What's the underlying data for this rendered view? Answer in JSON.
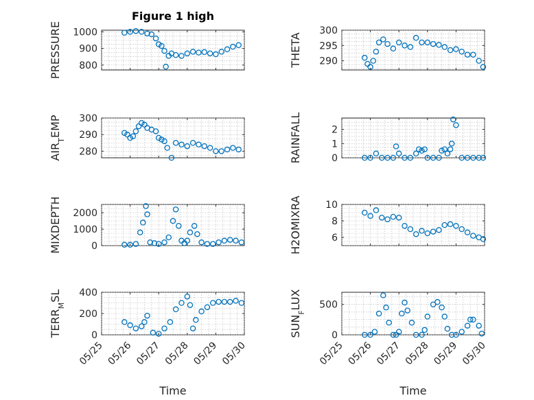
{
  "figure": {
    "title": "Figure 1 high",
    "marker_color": "#0072BD"
  },
  "chart_data": [
    {
      "type": "scatter",
      "title": "Figure 1 high",
      "ylabel": "PRESSURE",
      "xlabel": "",
      "xlim": [
        "05/25",
        "05/30"
      ],
      "ylim": [
        770,
        1010
      ],
      "yticks": [
        800,
        900,
        1000
      ],
      "xticks": [
        "05/25",
        "05/26",
        "05/27",
        "05/28",
        "05/29",
        "05/30"
      ],
      "show_xticklabels": false,
      "grid": true,
      "series": [
        {
          "x": [
            25.8,
            26.0,
            26.2,
            26.4,
            26.6,
            26.75,
            26.9,
            27.0,
            27.1,
            27.2,
            27.25,
            27.35,
            27.45,
            27.6,
            27.8,
            28.0,
            28.2,
            28.4,
            28.6,
            28.8,
            29.0,
            29.2,
            29.4,
            29.6,
            29.8
          ],
          "y": [
            995,
            1000,
            1005,
            1000,
            990,
            985,
            960,
            925,
            915,
            885,
            790,
            855,
            870,
            860,
            855,
            870,
            880,
            875,
            878,
            870,
            865,
            880,
            895,
            910,
            920
          ]
        }
      ]
    },
    {
      "type": "scatter",
      "ylabel": "THETA",
      "xlabel": "",
      "xlim": [
        "05/25",
        "05/30"
      ],
      "ylim": [
        287,
        300
      ],
      "yticks": [
        290,
        295,
        300
      ],
      "xticks": [
        "05/25",
        "05/26",
        "05/27",
        "05/28",
        "05/29",
        "05/30"
      ],
      "show_xticklabels": false,
      "grid": true,
      "series": [
        {
          "x": [
            25.8,
            25.9,
            26.0,
            26.1,
            26.2,
            26.3,
            26.45,
            26.6,
            26.8,
            27.0,
            27.2,
            27.4,
            27.6,
            27.8,
            28.0,
            28.2,
            28.4,
            28.6,
            28.8,
            29.0,
            29.2,
            29.4,
            29.6,
            29.8,
            29.95
          ],
          "y": [
            291,
            289,
            288,
            290,
            293,
            296,
            297,
            295.5,
            294,
            296,
            295,
            294.5,
            297.5,
            296,
            296,
            295.5,
            295.2,
            294.5,
            293.5,
            293.8,
            293,
            292,
            292,
            290,
            288
          ]
        }
      ]
    },
    {
      "type": "scatter",
      "ylabel": "AIR_TEMP",
      "xlabel": "",
      "xlim": [
        "05/25",
        "05/30"
      ],
      "ylim": [
        276,
        300
      ],
      "yticks": [
        280,
        290,
        300
      ],
      "xticks": [
        "05/25",
        "05/26",
        "05/27",
        "05/28",
        "05/29",
        "05/30"
      ],
      "show_xticklabels": false,
      "grid": true,
      "series": [
        {
          "x": [
            25.8,
            25.9,
            26.0,
            26.1,
            26.2,
            26.3,
            26.4,
            26.5,
            26.6,
            26.75,
            26.9,
            27.0,
            27.1,
            27.2,
            27.3,
            27.45,
            27.6,
            27.8,
            28.0,
            28.2,
            28.4,
            28.6,
            28.8,
            29.0,
            29.2,
            29.4,
            29.6,
            29.8
          ],
          "y": [
            291,
            290,
            288,
            289,
            292,
            295,
            297,
            296,
            294,
            293,
            292,
            288,
            287,
            286,
            282,
            276,
            285,
            284,
            283,
            285,
            284,
            283,
            282,
            280,
            280,
            281,
            282,
            281
          ]
        }
      ]
    },
    {
      "type": "scatter",
      "ylabel": "RAINFALL",
      "xlabel": "",
      "xlim": [
        "05/25",
        "05/30"
      ],
      "ylim": [
        0,
        2.8
      ],
      "yticks": [
        0,
        1,
        2
      ],
      "xticks": [
        "05/25",
        "05/26",
        "05/27",
        "05/28",
        "05/29",
        "05/30"
      ],
      "show_xticklabels": false,
      "grid": true,
      "series": [
        {
          "x": [
            25.8,
            26.0,
            26.2,
            26.4,
            26.6,
            26.8,
            26.9,
            27.0,
            27.2,
            27.4,
            27.6,
            27.7,
            27.8,
            27.9,
            28.0,
            28.2,
            28.4,
            28.5,
            28.6,
            28.7,
            28.8,
            28.85,
            28.9,
            29.0,
            29.2,
            29.4,
            29.6,
            29.8,
            29.95
          ],
          "y": [
            0,
            0,
            0.3,
            0,
            0,
            0,
            0.8,
            0.3,
            0,
            0,
            0.3,
            0.6,
            0.5,
            0.6,
            0,
            0,
            0,
            0.5,
            0.6,
            0.3,
            0.6,
            1.0,
            2.7,
            2.3,
            0,
            0,
            0,
            0,
            0
          ]
        }
      ]
    },
    {
      "type": "scatter",
      "ylabel": "MIXDEPTH",
      "xlabel": "",
      "xlim": [
        "05/25",
        "05/30"
      ],
      "ylim": [
        0,
        2500
      ],
      "yticks": [
        0,
        1000,
        2000
      ],
      "xticks": [
        "05/25",
        "05/26",
        "05/27",
        "05/28",
        "05/29",
        "05/30"
      ],
      "show_xticklabels": false,
      "grid": true,
      "series": [
        {
          "x": [
            25.8,
            26.0,
            26.2,
            26.35,
            26.45,
            26.55,
            26.6,
            26.7,
            26.85,
            27.0,
            27.2,
            27.35,
            27.5,
            27.6,
            27.7,
            27.8,
            27.9,
            28.0,
            28.1,
            28.25,
            28.35,
            28.5,
            28.7,
            28.9,
            29.1,
            29.3,
            29.5,
            29.7,
            29.9
          ],
          "y": [
            50,
            50,
            100,
            800,
            1400,
            2400,
            1900,
            200,
            150,
            100,
            200,
            500,
            1500,
            2200,
            1200,
            300,
            150,
            300,
            800,
            1200,
            700,
            200,
            100,
            100,
            200,
            300,
            350,
            300,
            200
          ]
        }
      ]
    },
    {
      "type": "scatter",
      "ylabel": "H2OMIXRA",
      "xlabel": "",
      "xlim": [
        "05/25",
        "05/30"
      ],
      "ylim": [
        5,
        10
      ],
      "yticks": [
        6,
        8,
        10
      ],
      "xticks": [
        "05/25",
        "05/26",
        "05/27",
        "05/28",
        "05/29",
        "05/30"
      ],
      "show_xticklabels": false,
      "grid": true,
      "series": [
        {
          "x": [
            25.8,
            26.0,
            26.2,
            26.4,
            26.6,
            26.8,
            27.0,
            27.2,
            27.4,
            27.6,
            27.8,
            28.0,
            28.2,
            28.4,
            28.6,
            28.8,
            29.0,
            29.2,
            29.4,
            29.6,
            29.8,
            29.95
          ],
          "y": [
            9.0,
            8.6,
            9.3,
            8.4,
            8.2,
            8.5,
            8.4,
            7.4,
            7.0,
            6.4,
            6.8,
            6.5,
            6.7,
            6.9,
            7.5,
            7.6,
            7.4,
            7.0,
            6.6,
            6.2,
            6.0,
            5.8
          ]
        }
      ]
    },
    {
      "type": "scatter",
      "ylabel": "TERR_MSL",
      "xlabel": "Time",
      "xlim": [
        "05/25",
        "05/30"
      ],
      "ylim": [
        0,
        400
      ],
      "yticks": [
        0,
        200,
        400
      ],
      "xticks": [
        "05/25",
        "05/26",
        "05/27",
        "05/28",
        "05/29",
        "05/30"
      ],
      "show_xticklabels": true,
      "grid": true,
      "series": [
        {
          "x": [
            25.8,
            26.0,
            26.2,
            26.4,
            26.5,
            26.6,
            26.8,
            27.0,
            27.2,
            27.4,
            27.6,
            27.8,
            28.0,
            28.1,
            28.2,
            28.3,
            28.5,
            28.7,
            28.9,
            29.1,
            29.3,
            29.5,
            29.7,
            29.9
          ],
          "y": [
            120,
            90,
            60,
            80,
            120,
            180,
            20,
            10,
            60,
            120,
            240,
            300,
            360,
            280,
            60,
            140,
            220,
            260,
            300,
            310,
            310,
            310,
            320,
            300
          ]
        }
      ]
    },
    {
      "type": "scatter",
      "ylabel": "SUN_FLUX",
      "xlabel": "Time",
      "xlim": [
        "05/25",
        "05/30"
      ],
      "ylim": [
        0,
        700
      ],
      "yticks": [
        0,
        500
      ],
      "xticks": [
        "05/25",
        "05/26",
        "05/27",
        "05/28",
        "05/29",
        "05/30"
      ],
      "show_xticklabels": true,
      "grid": true,
      "series": [
        {
          "x": [
            25.8,
            26.0,
            26.15,
            26.3,
            26.45,
            26.55,
            26.65,
            26.8,
            26.9,
            27.0,
            27.1,
            27.2,
            27.3,
            27.45,
            27.6,
            27.8,
            27.9,
            28.0,
            28.2,
            28.35,
            28.5,
            28.6,
            28.7,
            28.85,
            29.0,
            29.2,
            29.4,
            29.5,
            29.6,
            29.8,
            29.9
          ],
          "y": [
            0,
            0,
            50,
            350,
            650,
            450,
            200,
            0,
            0,
            50,
            350,
            530,
            400,
            200,
            0,
            0,
            80,
            300,
            500,
            540,
            450,
            300,
            100,
            0,
            0,
            50,
            150,
            250,
            250,
            150,
            20
          ]
        }
      ]
    }
  ]
}
